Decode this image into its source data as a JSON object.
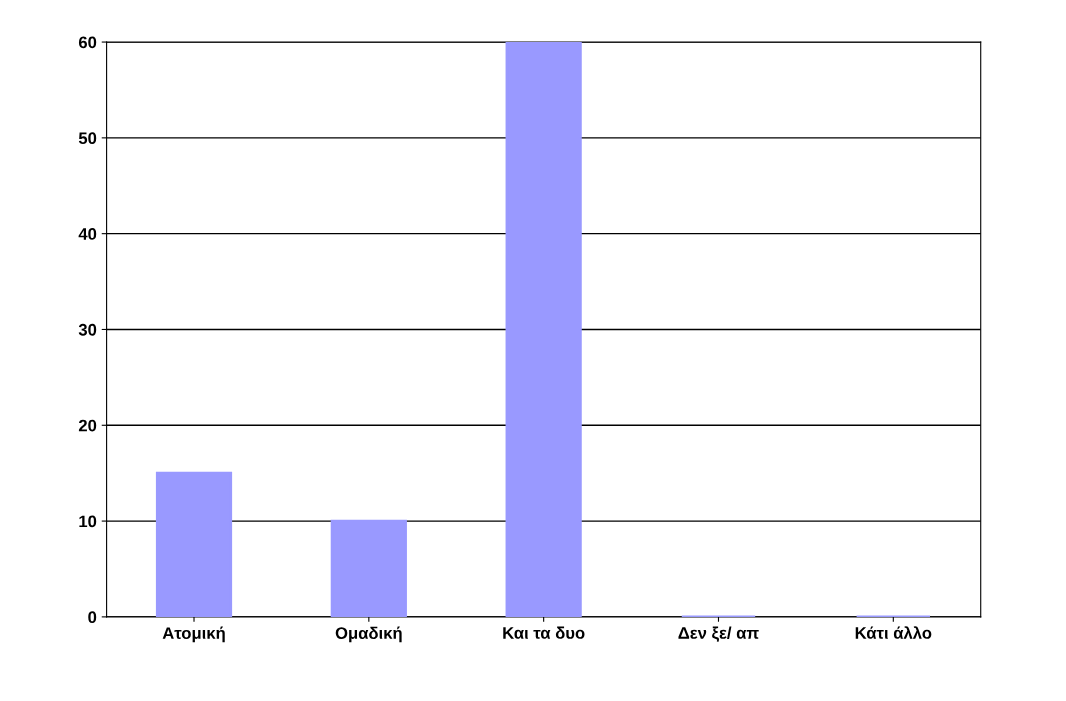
{
  "chart_data": {
    "type": "bar",
    "categories": [
      "Ατομική",
      "Ομαδική",
      "Και τα δυο",
      "Δεν ξε/ απ",
      "Κάτι άλλο"
    ],
    "values": [
      15,
      10,
      60,
      0,
      0
    ],
    "color": "#9999ff",
    "ylim": [
      0,
      60
    ],
    "yticks": [
      0,
      10,
      20,
      30,
      40,
      50,
      60
    ],
    "grid": "y",
    "legend": false
  }
}
